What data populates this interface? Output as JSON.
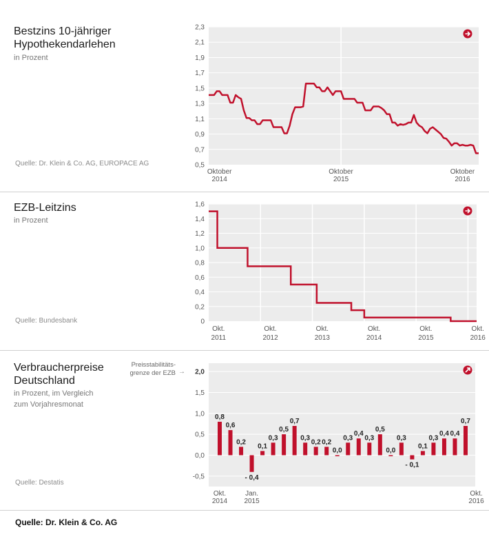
{
  "colors": {
    "line": "#c0102b",
    "bar": "#c0102b",
    "plot_bg": "#ececec",
    "grid": "#ffffff"
  },
  "footer": "Quelle: Dr. Klein & Co. AG",
  "chart_data": [
    {
      "type": "line",
      "title_line1": "Bestzins 10-jähriger",
      "title_line2": "Hypothekendarlehen",
      "subtitle": "in Prozent",
      "source": "Quelle: Dr. Klein & Co. AG, EUROPACE AG",
      "icon": "arrow-right-icon",
      "ylim": [
        0.5,
        2.3
      ],
      "yticks": [
        "0,5",
        "0,7",
        "0,9",
        "1,1",
        "1,3",
        "1,5",
        "1,7",
        "1,9",
        "2,1",
        "2,3"
      ],
      "xlim": [
        0,
        100
      ],
      "xticks": [
        {
          "x": 4,
          "l1": "Oktober",
          "l2": "2014"
        },
        {
          "x": 49,
          "l1": "Oktober",
          "l2": "2015"
        },
        {
          "x": 94,
          "l1": "Oktober",
          "l2": "2016"
        }
      ],
      "vlines": [
        49
      ],
      "values": [
        1.41,
        1.41,
        1.41,
        1.46,
        1.46,
        1.41,
        1.41,
        1.41,
        1.31,
        1.31,
        1.41,
        1.38,
        1.36,
        1.21,
        1.11,
        1.11,
        1.08,
        1.08,
        1.03,
        1.03,
        1.08,
        1.08,
        1.08,
        1.08,
        0.99,
        0.99,
        0.99,
        0.99,
        0.91,
        0.91,
        1.01,
        1.16,
        1.25,
        1.25,
        1.25,
        1.26,
        1.56,
        1.56,
        1.56,
        1.56,
        1.51,
        1.51,
        1.46,
        1.46,
        1.51,
        1.46,
        1.41,
        1.46,
        1.46,
        1.46,
        1.36,
        1.36,
        1.36,
        1.36,
        1.36,
        1.31,
        1.31,
        1.31,
        1.21,
        1.21,
        1.21,
        1.26,
        1.26,
        1.26,
        1.24,
        1.21,
        1.16,
        1.16,
        1.05,
        1.05,
        1.01,
        1.03,
        1.02,
        1.03,
        1.05,
        1.05,
        1.15,
        1.05,
        1.01,
        0.99,
        0.94,
        0.91,
        0.97,
        0.99,
        0.96,
        0.93,
        0.9,
        0.85,
        0.84,
        0.8,
        0.75,
        0.78,
        0.78,
        0.75,
        0.76,
        0.75,
        0.75,
        0.76,
        0.75,
        0.65,
        0.65
      ]
    },
    {
      "type": "line",
      "title_line1": "EZB-Leitzins",
      "subtitle": "in Prozent",
      "source": "Quelle: Bundesbank",
      "icon": "arrow-right-icon",
      "ylim": [
        0,
        1.6
      ],
      "yticks": [
        "0",
        "0,2",
        "0,4",
        "0,6",
        "0,8",
        "1,0",
        "1,2",
        "1,4",
        "1,6"
      ],
      "xlim": [
        0,
        62
      ],
      "xticks": [
        {
          "x": 1,
          "l1": "Okt.",
          "l2": "2011"
        },
        {
          "x": 13,
          "l1": "Okt.",
          "l2": "2012"
        },
        {
          "x": 25,
          "l1": "Okt.",
          "l2": "2013"
        },
        {
          "x": 37,
          "l1": "Okt.",
          "l2": "2014"
        },
        {
          "x": 49,
          "l1": "Okt.",
          "l2": "2015"
        },
        {
          "x": 61,
          "l1": "Okt.",
          "l2": "2016"
        }
      ],
      "vlines": [
        12,
        24,
        36,
        48,
        60
      ],
      "steps": [
        [
          0,
          1.5
        ],
        [
          2,
          1.0
        ],
        [
          9,
          0.75
        ],
        [
          19,
          0.5
        ],
        [
          25,
          0.25
        ],
        [
          33,
          0.15
        ],
        [
          36,
          0.05
        ],
        [
          56,
          0.0
        ],
        [
          62,
          0.0
        ]
      ]
    },
    {
      "type": "bar",
      "title_line1": "Verbraucherpreise",
      "title_line2": "Deutschland",
      "subtitle_line1": "in Prozent, im Vergleich",
      "subtitle_line2": "zum Vorjahresmonat",
      "source": "Quelle: Destatis",
      "icon": "arrow-up-right-icon",
      "note_line1": "Preisstabilitäts-",
      "note_line2": "grenze der EZB",
      "note_arrow": "→",
      "ylim": [
        -0.75,
        2.2
      ],
      "yticks": [
        "-0,5",
        "0,0",
        "0,5",
        "1,0",
        "1,5",
        "2,0"
      ],
      "ytick_values": [
        -0.5,
        0,
        0.5,
        1,
        1.5,
        2
      ],
      "xticks": [
        {
          "i": 0,
          "l1": "Okt.",
          "l2": "2014"
        },
        {
          "i": 3,
          "l1": "Jan.",
          "l2": "2015"
        },
        {
          "i": 24,
          "l1": "Okt.",
          "l2": "2016"
        }
      ],
      "values": [
        0.8,
        0.6,
        0.2,
        -0.4,
        0.1,
        0.3,
        0.5,
        0.7,
        0.3,
        0.2,
        0.2,
        0.0,
        0.3,
        0.4,
        0.3,
        0.5,
        0.0,
        0.3,
        -0.1,
        0.1,
        0.3,
        0.4,
        0.4,
        0.7
      ],
      "labels": [
        "0,8",
        "0,6",
        "0,2",
        "- 0,4",
        "0,1",
        "0,3",
        "0,5",
        "0,7",
        "0,3",
        "0,2",
        "0,2",
        "0,0",
        "0,3",
        "0,4",
        "0,3",
        "0,5",
        "0,0",
        "0,3",
        "- 0,1",
        "0,1",
        "0,3",
        "0,4",
        "0,4",
        "0,7"
      ]
    }
  ]
}
